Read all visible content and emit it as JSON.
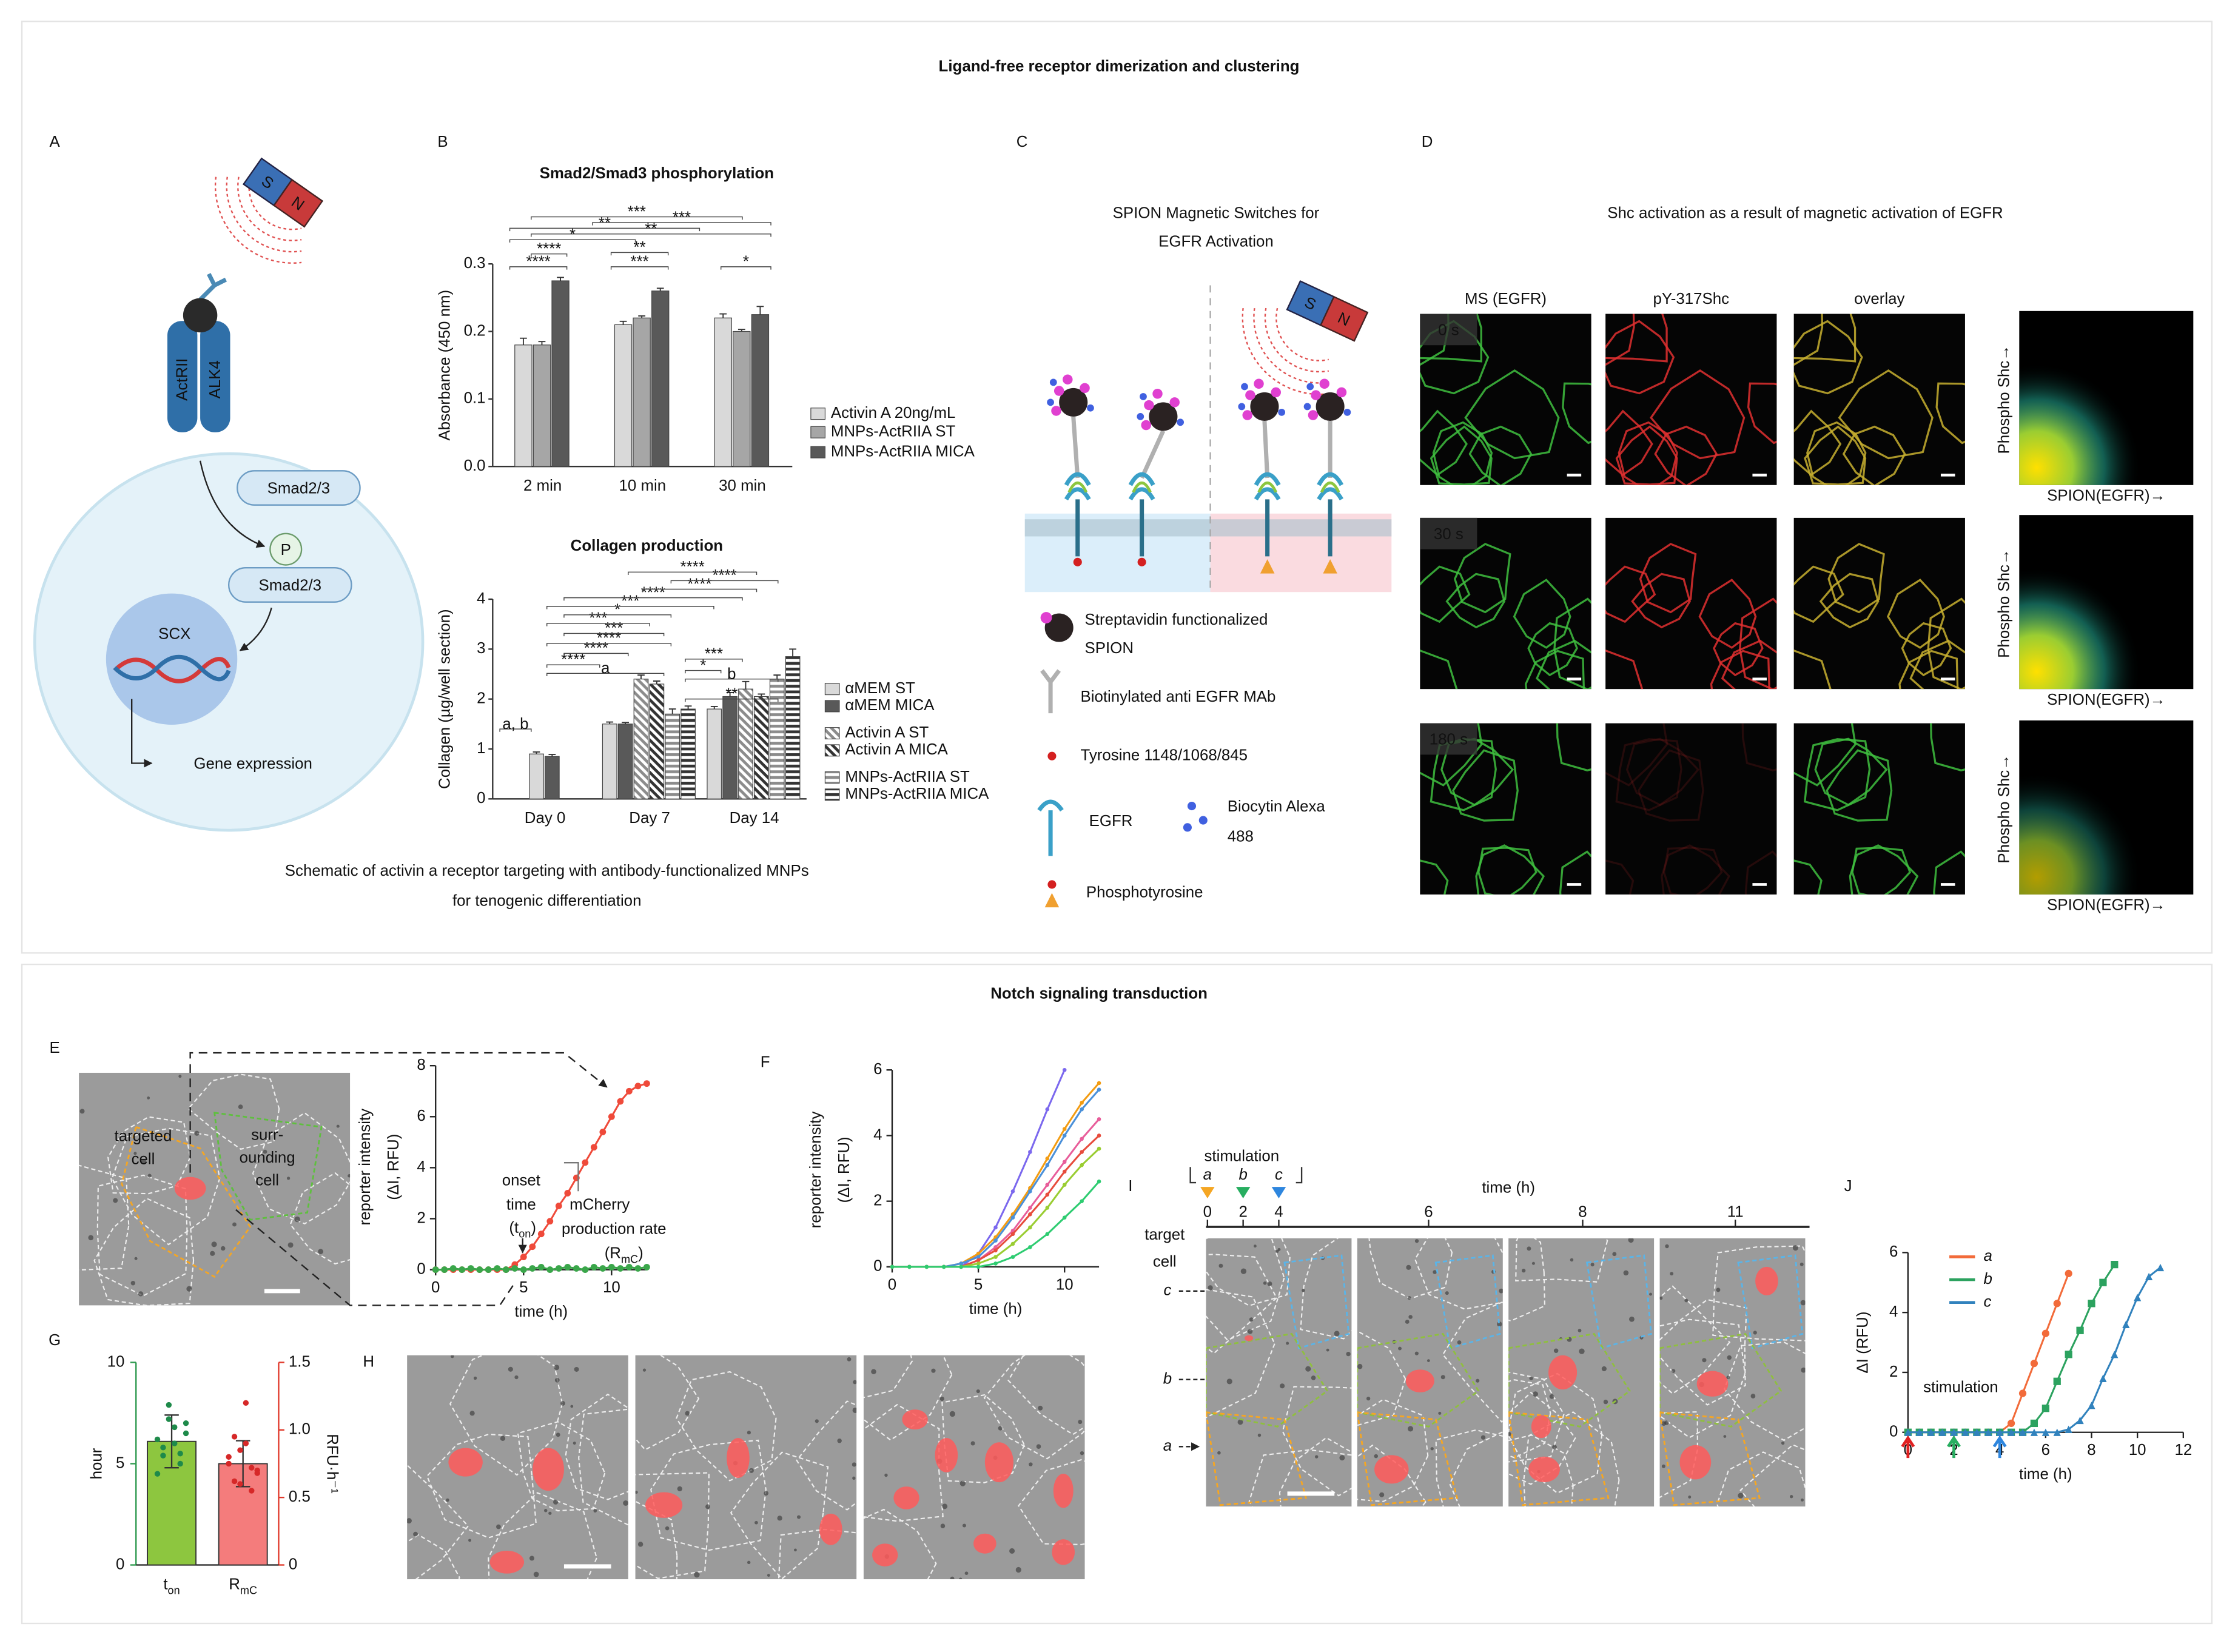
{
  "sections": [
    {
      "title": "Ligand-free receptor dimerization and clustering"
    },
    {
      "title": "Notch signaling transduction"
    }
  ],
  "panel_a": {
    "label": "A",
    "magnet": [
      "S",
      "N"
    ],
    "receptors": [
      "ActRII",
      "ALK4"
    ],
    "smad": "Smad2/3",
    "phospho": "P",
    "smad_p": "Smad2/3",
    "gene": "SCX",
    "output": "Gene expression",
    "caption": [
      "Schematic of activin a receptor targeting with antibody-functionalized MNPs",
      "for tenogenic differentiation"
    ]
  },
  "panel_b": {
    "label": "B",
    "charts": [
      {
        "type": "bar",
        "title": "Smad2/Smad3 phosphorylation",
        "y_label": "Absorbance (450 nm)",
        "categories": [
          "2 min",
          "10 min",
          "30 min"
        ],
        "series": [
          {
            "name": "Activin A 20ng/mL",
            "color": "#d9d9d9",
            "pattern": "solid",
            "values": [
              0.18,
              0.21,
              0.22
            ],
            "errors": [
              0.01,
              0.005,
              0.006
            ]
          },
          {
            "name": "MNPs-ActRIIA ST",
            "color": "#a6a6a6",
            "pattern": "solid",
            "values": [
              0.18,
              0.22,
              0.2
            ],
            "errors": [
              0.005,
              0.003,
              0.003
            ]
          },
          {
            "name": "MNPs-ActRIIA MICA",
            "color": "#595959",
            "pattern": "solid",
            "values": [
              0.275,
              0.26,
              0.225
            ],
            "errors": [
              0.005,
              0.004,
              0.012
            ]
          }
        ],
        "ylim": [
          0,
          0.3
        ],
        "yticks": [
          {
            "value": 0,
            "label": "0.0"
          },
          0.1,
          0.2,
          0.3
        ],
        "significance": [
          "****",
          "****",
          "*",
          "**",
          "***",
          "***",
          "**",
          "**",
          "***",
          "*"
        ]
      },
      {
        "type": "bar",
        "title": "Collagen production",
        "y_label": "Collagen (µg/well section)",
        "categories": [
          "Day 0",
          "Day 7",
          "Day 14"
        ],
        "series": [
          {
            "name": "αMEM ST",
            "color": "#d9d9d9",
            "pattern": "solid",
            "values": [
              0.9,
              1.5,
              1.8
            ],
            "errors": [
              0.04,
              0.04,
              0.05
            ]
          },
          {
            "name": "αMEM MICA",
            "color": "#595959",
            "pattern": "solid",
            "values": [
              0.85,
              1.5,
              2.05
            ],
            "errors": [
              0.04,
              0.03,
              0.08
            ]
          },
          {
            "name": "Activin A ST",
            "color": "#8c8c8c",
            "pattern": "diagonal",
            "values": [
              null,
              2.4,
              2.2
            ],
            "errors": [
              null,
              0.08,
              0.15
            ]
          },
          {
            "name": "Activin A MICA",
            "color": "#333333",
            "pattern": "diagonal",
            "values": [
              null,
              2.3,
              2.05
            ],
            "errors": [
              null,
              0.06,
              0.05
            ]
          },
          {
            "name": "MNPs-ActRIIA ST",
            "color": "#8c8c8c",
            "pattern": "horizontal",
            "values": [
              null,
              1.7,
              2.4
            ],
            "errors": [
              null,
              0.1,
              0.08
            ]
          },
          {
            "name": "MNPs-ActRIIA MICA",
            "color": "#333333",
            "pattern": "horizontal",
            "values": [
              null,
              1.8,
              2.85
            ],
            "errors": [
              null,
              0.06,
              0.15
            ]
          }
        ],
        "ylim": [
          0,
          4
        ],
        "yticks": [
          0,
          1,
          2,
          3,
          4
        ],
        "significance": [
          "a, b",
          "****",
          "a",
          "****",
          "****",
          "***",
          "***",
          "*",
          "***",
          "****",
          "****",
          "****",
          "****",
          "**",
          "b",
          "***",
          "*"
        ]
      }
    ]
  },
  "panel_c": {
    "label": "C",
    "title": [
      "SPION Magnetic Switches for",
      "EGFR Activation"
    ],
    "magnet": [
      "S",
      "N"
    ],
    "legend": [
      "Streptavidin functionalized",
      "SPION",
      "Biotinylated anti EGFR MAb",
      "Tyrosine 1148/1068/845",
      "EGFR",
      "Biocytin Alexa",
      "488",
      "Phosphotyrosine"
    ]
  },
  "panel_d": {
    "label": "D",
    "title": "Shc activation as a result of magnetic activation of EGFR",
    "columns": [
      "MS (EGFR)",
      "pY-317Shc",
      "overlay"
    ],
    "times": [
      "0 s",
      "30 s",
      "180 s"
    ],
    "y_axis": "Phospho Shc→",
    "x_axis": "SPION(EGFR)→"
  },
  "panel_e": {
    "label": "E",
    "cell_labels": {
      "targeted": [
        "targeted",
        "cell"
      ],
      "surrounding": [
        "surr-",
        "ounding",
        "cell"
      ]
    },
    "annotations": {
      "onset": [
        "onset",
        "time"
      ],
      "onset_symbol": {
        "main": "(t",
        "sub": "on",
        "end": ")"
      },
      "rate": [
        "mCherry",
        "production rate"
      ],
      "rate_symbol": {
        "main": "(R",
        "sub": "mC",
        "end": ")"
      }
    },
    "chart": {
      "type": "line",
      "x_label": "time (h)",
      "y_label": [
        "reporter intensity",
        "(ΔI, RFU)"
      ],
      "x": [
        0,
        0.5,
        1,
        1.5,
        2,
        2.5,
        3,
        3.5,
        4,
        4.5,
        5,
        5.5,
        6,
        6.5,
        7,
        7.5,
        8,
        8.5,
        9,
        9.5,
        10,
        10.5,
        11,
        11.5,
        12
      ],
      "series": [
        {
          "color": "#ef4a3a",
          "marker": "circle",
          "values": [
            0,
            0,
            0,
            0,
            0,
            0,
            0,
            0,
            0,
            0.2,
            0.5,
            0.9,
            1.4,
            1.9,
            2.5,
            3.0,
            3.6,
            4.2,
            4.8,
            5.4,
            6.0,
            6.6,
            7.0,
            7.2,
            7.3
          ]
        },
        {
          "color": "#3aa64a",
          "marker": "circle",
          "values": [
            0,
            0,
            0.05,
            0,
            0.05,
            0,
            0,
            0.05,
            0,
            0.05,
            0,
            0.05,
            0.1,
            0,
            0.05,
            0.1,
            0.05,
            0,
            0.1,
            0.05,
            0.1,
            0.05,
            0.1,
            0.05,
            0.1
          ]
        }
      ],
      "xlim": [
        0,
        12
      ],
      "ylim": [
        0,
        8
      ],
      "xticks": [
        0,
        5,
        10
      ],
      "yticks": [
        0,
        2,
        4,
        6,
        8
      ]
    }
  },
  "panel_f": {
    "label": "F",
    "chart": {
      "type": "line",
      "x_label": "time (h)",
      "y_label": [
        "reporter intensity",
        "(ΔI, RFU)"
      ],
      "x": [
        0,
        1,
        2,
        3,
        4,
        5,
        6,
        7,
        8,
        9,
        10,
        11,
        12
      ],
      "series": [
        {
          "color": "#7b68ee",
          "marker": "circle",
          "values": [
            0,
            0,
            0,
            0,
            0,
            0.4,
            1.2,
            2.3,
            3.5,
            4.8,
            6.0,
            null,
            null
          ]
        },
        {
          "color": "#f39c12",
          "marker": "circle",
          "values": [
            0,
            0,
            0,
            0,
            0.1,
            0.4,
            0.9,
            1.6,
            2.4,
            3.3,
            4.2,
            5.0,
            5.6
          ]
        },
        {
          "color": "#4a90d9",
          "marker": "circle",
          "values": [
            0,
            0,
            0,
            0,
            0.1,
            0.3,
            0.8,
            1.5,
            2.3,
            3.1,
            4.0,
            4.8,
            5.4
          ]
        },
        {
          "color": "#e85d9a",
          "marker": "circle",
          "values": [
            0,
            0,
            0,
            0,
            0,
            0.2,
            0.6,
            1.1,
            1.8,
            2.5,
            3.2,
            3.9,
            4.5
          ]
        },
        {
          "color": "#e74c3c",
          "marker": "circle",
          "values": [
            0,
            0,
            0,
            0,
            0,
            0.2,
            0.5,
            1.0,
            1.6,
            2.2,
            2.9,
            3.5,
            4.0
          ]
        },
        {
          "color": "#9acd32",
          "marker": "circle",
          "values": [
            0,
            0,
            0,
            0,
            0,
            0.1,
            0.3,
            0.7,
            1.2,
            1.8,
            2.5,
            3.1,
            3.6
          ]
        },
        {
          "color": "#2ecc71",
          "marker": "circle",
          "values": [
            0,
            0,
            0,
            0,
            0,
            0,
            0.1,
            0.3,
            0.6,
            1.0,
            1.5,
            2.0,
            2.6
          ]
        }
      ],
      "xlim": [
        0,
        12
      ],
      "ylim": [
        0,
        6
      ],
      "xticks": [
        0,
        5,
        10
      ],
      "yticks": [
        0,
        2,
        4,
        6
      ]
    }
  },
  "panel_g": {
    "label": "G",
    "chart": {
      "type": "bar",
      "y_label": "hour",
      "y2_label": "RFU·h⁻¹",
      "y_color": "#2e9a4e",
      "y2_color": "#e0392b",
      "categories": [
        {
          "main": "t",
          "sub": "on"
        },
        {
          "main": "R",
          "sub": "mC"
        }
      ],
      "bars": [
        {
          "color": "#8dc63f",
          "value": 6.1,
          "error": 1.3,
          "points": [
            6.2,
            5.4,
            7.2,
            6.8,
            5.0,
            6.5,
            4.5,
            5.8,
            7.9,
            6.0,
            5.5,
            7.0
          ],
          "point_color": "#1e8a4a"
        },
        {
          "color": "#f47c7c",
          "value": 0.75,
          "error": 0.17,
          "axis": "y2",
          "points": [
            0.75,
            0.62,
            0.85,
            0.9,
            0.55,
            0.7,
            0.8,
            0.95,
            0.6,
            1.2,
            0.72,
            0.68
          ],
          "point_color": "#d62828"
        }
      ],
      "ylim": [
        0,
        10
      ],
      "yticks": [
        0,
        5,
        10
      ],
      "y2lim": [
        0,
        1.5
      ],
      "y2ticks": [
        0,
        0.5,
        {
          "value": 1,
          "label": "1.0"
        },
        1.5
      ]
    }
  },
  "panel_h": {
    "label": "H"
  },
  "panel_i": {
    "label": "I",
    "stimulation": "stimulation",
    "markers": [
      {
        "name": "a",
        "color": "#f5a623"
      },
      {
        "name": "b",
        "color": "#27ae60"
      },
      {
        "name": "c",
        "color": "#2e86de"
      }
    ],
    "time_label": "time (h)",
    "ticks": [
      0,
      2,
      4,
      6,
      8,
      11
    ],
    "row_label": [
      "target",
      "cell"
    ],
    "rows": [
      "c",
      "b",
      "a"
    ]
  },
  "panel_j": {
    "label": "J",
    "annotation": "stimulation",
    "chart": {
      "type": "line",
      "x_label": "time (h)",
      "y_label": "ΔI (RFU)",
      "x": [
        0,
        0.5,
        1,
        1.5,
        2,
        2.5,
        3,
        3.5,
        4,
        4.5,
        5,
        5.5,
        6,
        6.5,
        7,
        7.5,
        8,
        8.5,
        9,
        9.5,
        10,
        10.5,
        11
      ],
      "series": [
        {
          "name": "a",
          "color": "#f26b3a",
          "marker": "circle",
          "values": [
            0,
            0,
            0,
            0,
            0,
            0,
            0,
            0,
            0,
            0.3,
            1.3,
            2.3,
            3.3,
            4.3,
            5.3,
            null,
            null,
            null,
            null,
            null,
            null,
            null,
            null
          ]
        },
        {
          "name": "b",
          "color": "#2ca25f",
          "marker": "square",
          "values": [
            0,
            0,
            0,
            0,
            0,
            0,
            0,
            0,
            0,
            0,
            0,
            0.3,
            0.8,
            1.7,
            2.6,
            3.4,
            4.3,
            5.0,
            5.6,
            null,
            null,
            null,
            null
          ]
        },
        {
          "name": "c",
          "color": "#3182bd",
          "marker": "triangle",
          "values": [
            0,
            0,
            0,
            0,
            0,
            0,
            0,
            0,
            0,
            0,
            0,
            0,
            0,
            0,
            0.1,
            0.4,
            0.9,
            1.8,
            2.6,
            3.6,
            4.5,
            5.2,
            5.5
          ]
        }
      ],
      "stimulation_times": [
        0,
        2,
        4
      ],
      "arrow_colors": [
        "#e02020",
        "#27ae60",
        "#2e86de"
      ],
      "xlim": [
        0,
        12
      ],
      "ylim": [
        0,
        6
      ],
      "xticks": [
        0,
        2,
        4,
        6,
        8,
        10,
        12
      ],
      "yticks": [
        0,
        2,
        4,
        6
      ]
    }
  }
}
